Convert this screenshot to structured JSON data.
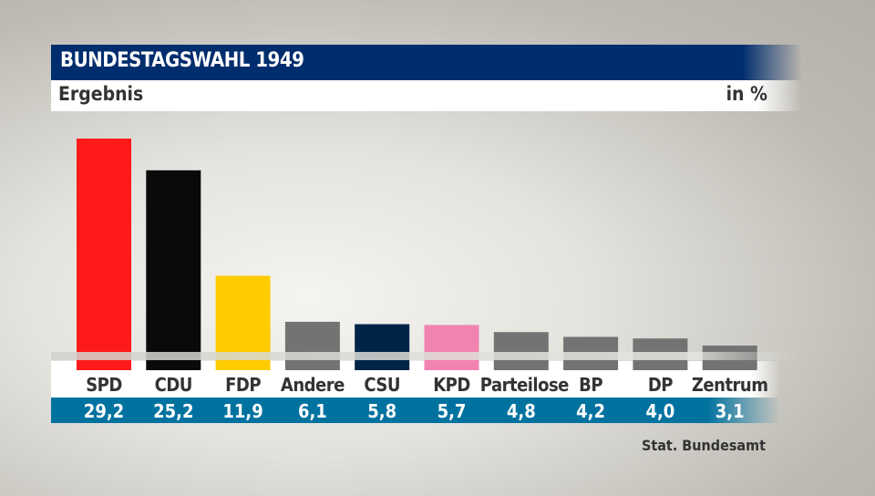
{
  "chart_data": {
    "type": "bar",
    "title": "BUNDESTAGSWAHL 1949",
    "subtitle": "Ergebnis",
    "unit": "in %",
    "source": "Stat. Bundesamt",
    "categories": [
      "SPD",
      "CDU",
      "FDP",
      "Andere",
      "CSU",
      "KPD",
      "Parteilose",
      "BP",
      "DP",
      "Zentrum"
    ],
    "values": [
      29.2,
      25.2,
      11.9,
      6.1,
      5.8,
      5.7,
      4.8,
      4.2,
      4.0,
      3.1
    ],
    "value_labels": [
      "29,2",
      "25,2",
      "11,9",
      "6,1",
      "5,8",
      "5,7",
      "4,8",
      "4,2",
      "4,0",
      "3,1"
    ],
    "colors": [
      "#ff1a1a",
      "#0a0a0a",
      "#ffcc00",
      "#737373",
      "#002447",
      "#f283b0",
      "#737373",
      "#737373",
      "#737373",
      "#737373"
    ],
    "ylim": [
      0,
      30
    ],
    "grid": false
  }
}
